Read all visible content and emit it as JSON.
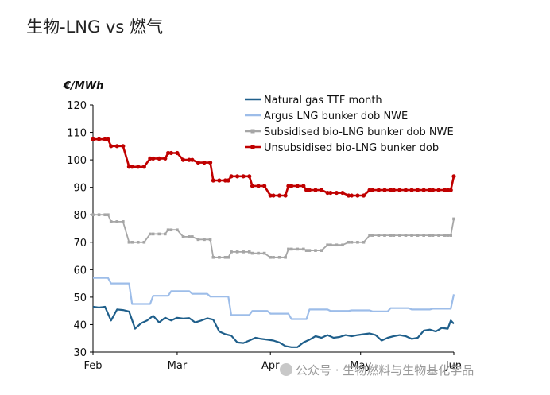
{
  "page": {
    "title": "生物-LNG vs 燃气"
  },
  "watermark": {
    "text": "公众号 · 生物燃料与生物基化学品",
    "icon": "wechat-icon"
  },
  "chart_data": {
    "type": "line",
    "title": "",
    "unit_label": "€/MWh",
    "xlabel": "",
    "ylabel": "€/MWh",
    "ylim": [
      30,
      120
    ],
    "y_ticks": [
      30,
      40,
      50,
      60,
      70,
      80,
      90,
      100,
      110,
      120
    ],
    "x_range": [
      0,
      120
    ],
    "x_ticks": [
      {
        "label": "Feb",
        "x": 0
      },
      {
        "label": "Mar",
        "x": 28
      },
      {
        "label": "Apr",
        "x": 59
      },
      {
        "label": "May",
        "x": 89
      },
      {
        "label": "Jun",
        "x": 120
      }
    ],
    "grid": false,
    "legend_position": "top-right",
    "series": [
      {
        "name": "Natural gas TTF month",
        "color": "#1f5f8b",
        "marker": "none",
        "x": [
          0,
          2,
          4,
          6,
          8,
          10,
          12,
          14,
          16,
          18,
          20,
          22,
          24,
          26,
          28,
          30,
          32,
          34,
          36,
          38,
          40,
          42,
          44,
          46,
          48,
          50,
          52,
          54,
          56,
          58,
          60,
          62,
          64,
          66,
          68,
          70,
          72,
          74,
          76,
          78,
          80,
          82,
          84,
          86,
          88,
          90,
          92,
          94,
          96,
          98,
          100,
          102,
          104,
          106,
          108,
          110,
          112,
          114,
          116,
          118,
          119,
          120
        ],
        "values": [
          46.5,
          46.2,
          46.5,
          41.5,
          45.5,
          45.3,
          44.8,
          38.5,
          40.5,
          41.5,
          43.2,
          40.8,
          42.5,
          41.5,
          42.5,
          42.2,
          42.4,
          40.8,
          41.5,
          42.3,
          41.8,
          37.5,
          36.5,
          36,
          33.5,
          33.3,
          34.2,
          35.2,
          34.8,
          34.5,
          34.2,
          33.5,
          32.2,
          31.8,
          31.8,
          33.5,
          34.5,
          35.8,
          35.2,
          36.2,
          35.2,
          35.5,
          36.2,
          35.8,
          36.2,
          36.5,
          36.8,
          36.2,
          34.2,
          35.2,
          35.8,
          36.2,
          35.8,
          34.8,
          35.2,
          37.8,
          38.2,
          37.5,
          38.8,
          38.5,
          41.5,
          40.3
        ]
      },
      {
        "name": "Argus LNG bunker dob NWE",
        "color": "#9dbde9",
        "marker": "none",
        "x": [
          0,
          5,
          6,
          12,
          13,
          19,
          20,
          25,
          26,
          32,
          33,
          38,
          39,
          45,
          46,
          52,
          53,
          58,
          59,
          65,
          66,
          71,
          72,
          78,
          79,
          85,
          86,
          92,
          93,
          98,
          99,
          105,
          106,
          112,
          113,
          118,
          119,
          120
        ],
        "values": [
          57,
          57,
          55,
          55,
          47.5,
          47.5,
          50.5,
          50.5,
          52.2,
          52.2,
          51.2,
          51.2,
          50.2,
          50.2,
          43.5,
          43.5,
          45,
          45,
          44,
          44,
          42,
          42,
          45.5,
          45.5,
          45,
          45,
          45.2,
          45.2,
          44.8,
          44.8,
          46,
          46,
          45.5,
          45.5,
          45.8,
          45.8,
          45.8,
          51
        ]
      },
      {
        "name": "Subsidised bio-LNG bunker dob NWE",
        "color": "#a6a6a6",
        "marker": "square",
        "x": [
          0,
          2,
          4,
          5,
          6,
          8,
          10,
          12,
          13,
          15,
          17,
          19,
          20,
          22,
          24,
          25,
          26,
          28,
          30,
          32,
          33,
          35,
          37,
          39,
          40,
          42,
          44,
          45,
          46,
          48,
          50,
          52,
          53,
          55,
          57,
          59,
          60,
          62,
          64,
          65,
          66,
          68,
          70,
          71,
          72,
          74,
          76,
          78,
          79,
          81,
          83,
          85,
          86,
          88,
          90,
          92,
          93,
          95,
          97,
          99,
          100,
          102,
          104,
          106,
          108,
          110,
          112,
          113,
          115,
          117,
          118,
          119,
          120
        ],
        "values": [
          80,
          80,
          80,
          80,
          77.5,
          77.5,
          77.5,
          70,
          70,
          70,
          70,
          73,
          73,
          73,
          73,
          74.5,
          74.5,
          74.5,
          72,
          72,
          72,
          71,
          71,
          71,
          64.5,
          64.5,
          64.5,
          64.5,
          66.5,
          66.5,
          66.5,
          66.5,
          66,
          66,
          66,
          64.5,
          64.5,
          64.5,
          64.5,
          67.5,
          67.5,
          67.5,
          67.5,
          67,
          67,
          67,
          67,
          69,
          69,
          69,
          69,
          70,
          70,
          70,
          70,
          72.5,
          72.5,
          72.5,
          72.5,
          72.5,
          72.5,
          72.5,
          72.5,
          72.5,
          72.5,
          72.5,
          72.5,
          72.5,
          72.5,
          72.5,
          72.5,
          72.5,
          78.5
        ]
      },
      {
        "name": "Unsubsidised bio-LNG bunker dob",
        "color": "#c00000",
        "marker": "circle",
        "x": [
          0,
          2,
          4,
          5,
          6,
          8,
          10,
          12,
          13,
          15,
          17,
          19,
          20,
          22,
          24,
          25,
          26,
          28,
          30,
          32,
          33,
          35,
          37,
          39,
          40,
          42,
          44,
          45,
          46,
          48,
          50,
          52,
          53,
          55,
          57,
          59,
          60,
          62,
          64,
          65,
          66,
          68,
          70,
          71,
          72,
          74,
          76,
          78,
          79,
          81,
          83,
          85,
          86,
          88,
          90,
          92,
          93,
          95,
          97,
          99,
          100,
          102,
          104,
          106,
          108,
          110,
          112,
          113,
          115,
          117,
          118,
          119,
          120
        ],
        "values": [
          107.5,
          107.5,
          107.5,
          107.5,
          105,
          105,
          105,
          97.5,
          97.5,
          97.5,
          97.5,
          100.5,
          100.5,
          100.5,
          100.5,
          102.5,
          102.5,
          102.5,
          100,
          100,
          100,
          99,
          99,
          99,
          92.5,
          92.5,
          92.5,
          92.5,
          94,
          94,
          94,
          94,
          90.5,
          90.5,
          90.5,
          87,
          87,
          87,
          87,
          90.5,
          90.5,
          90.5,
          90.5,
          89,
          89,
          89,
          89,
          88,
          88,
          88,
          88,
          87,
          87,
          87,
          87,
          89,
          89,
          89,
          89,
          89,
          89,
          89,
          89,
          89,
          89,
          89,
          89,
          89,
          89,
          89,
          89,
          89,
          94
        ]
      }
    ]
  }
}
